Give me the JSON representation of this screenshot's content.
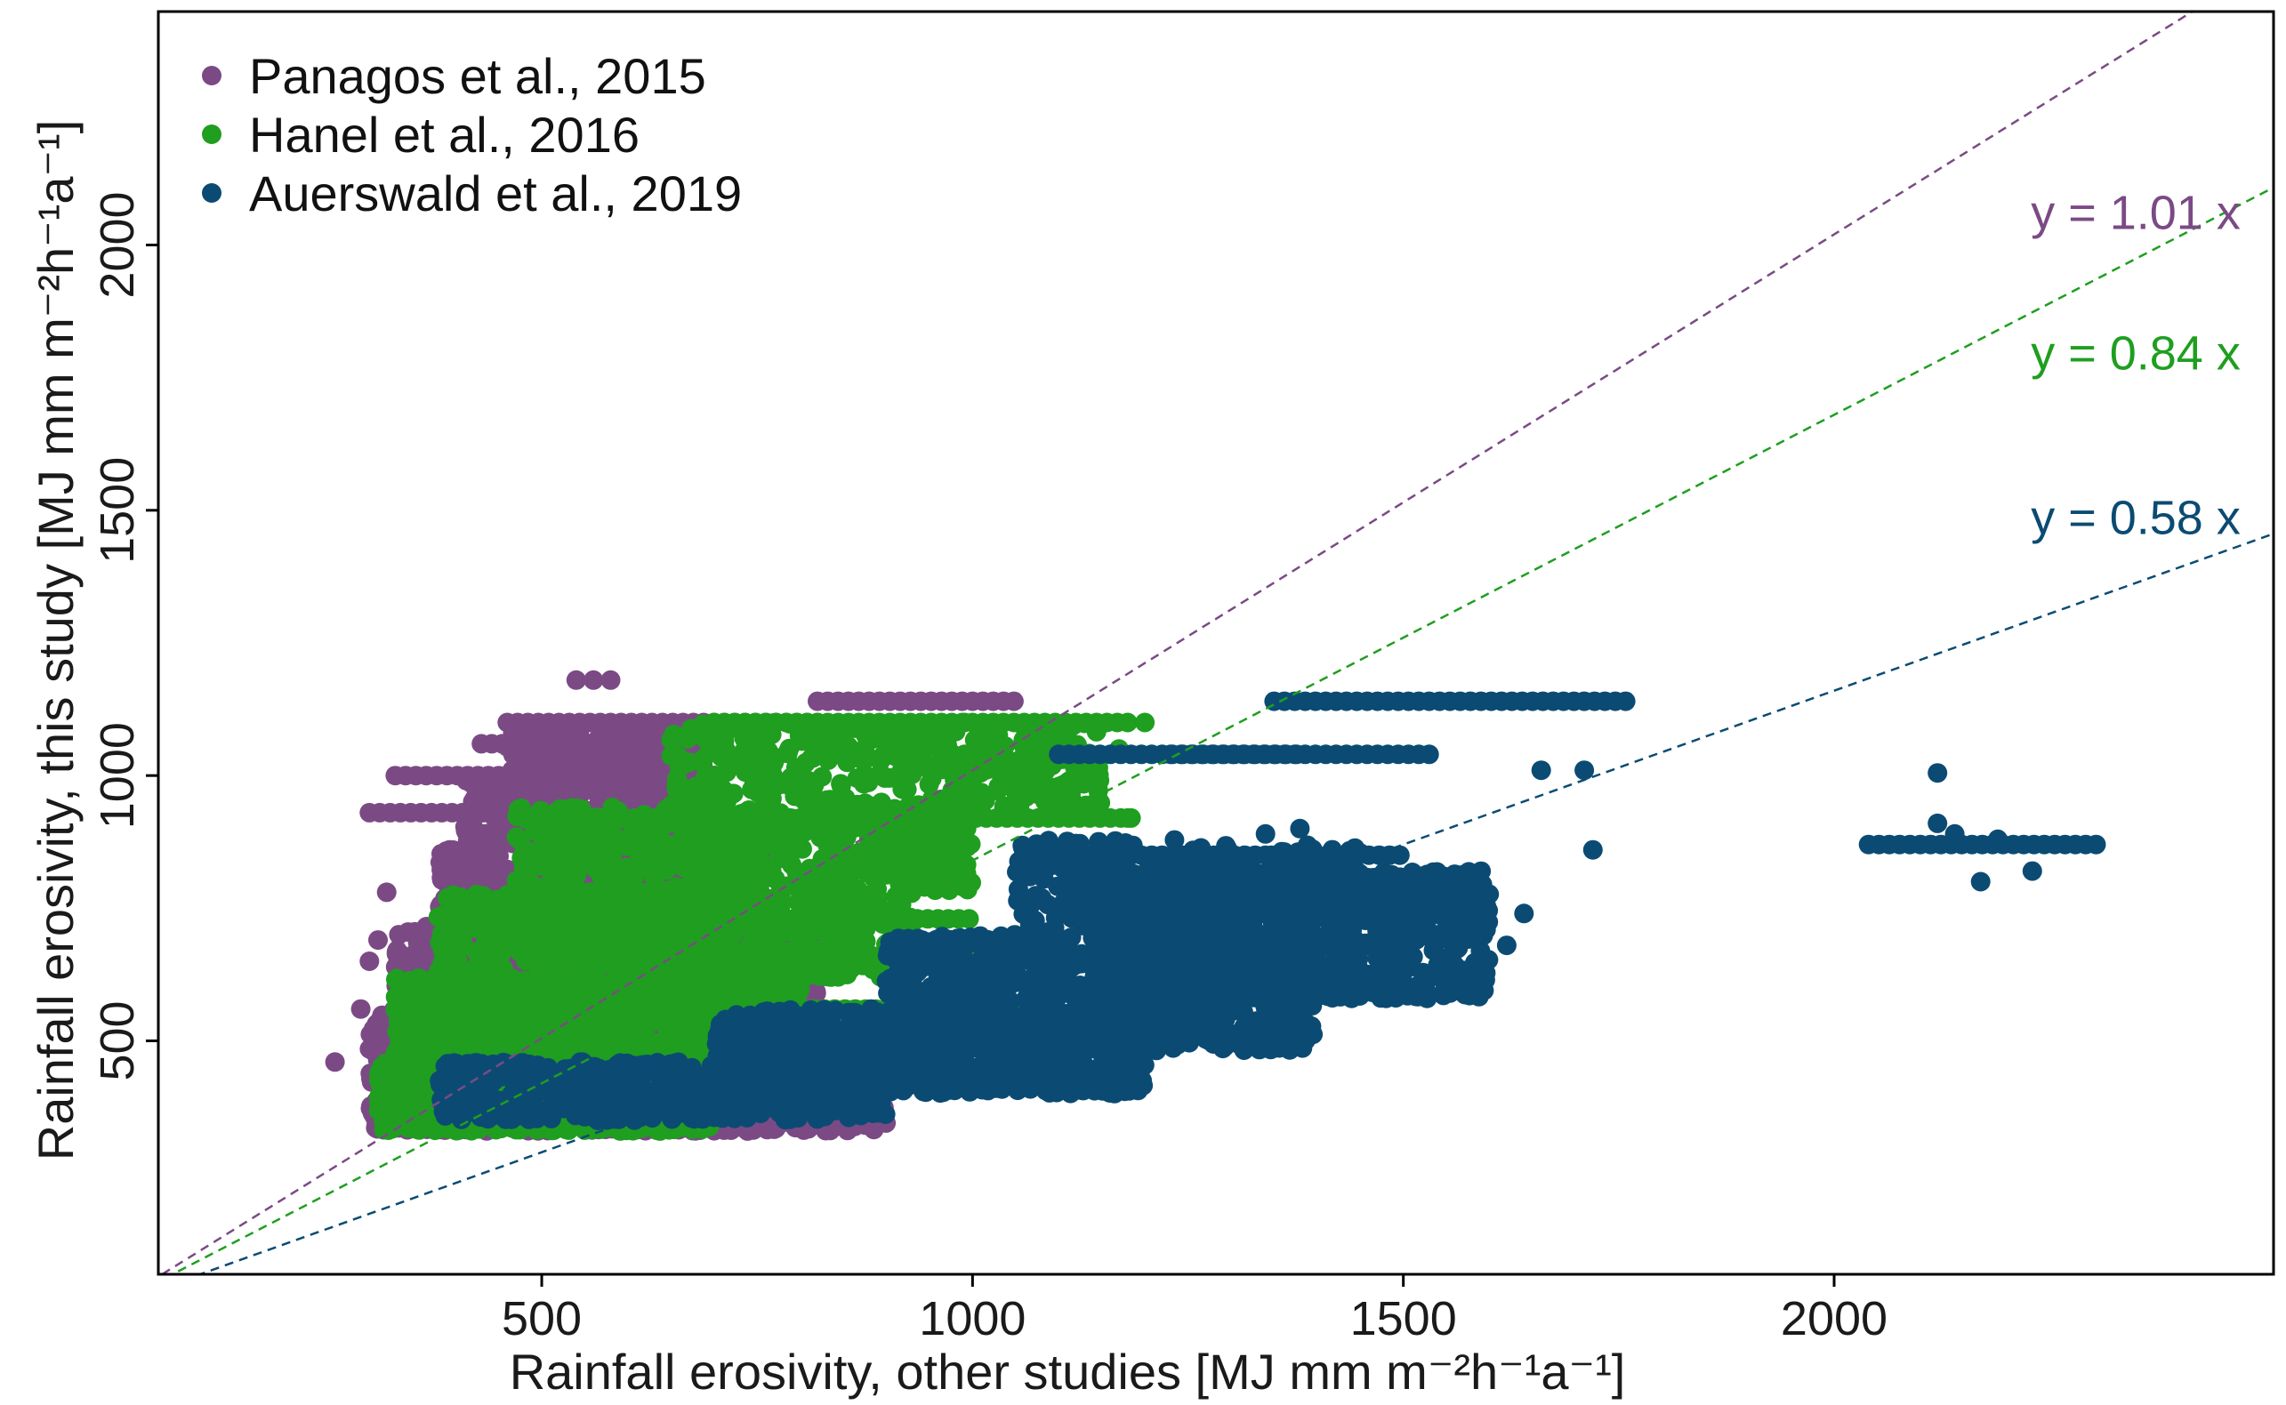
{
  "chart_data": {
    "type": "scatter",
    "xlabel": "Rainfall erosivity, other studies [MJ mm m⁻²h⁻¹a⁻¹]",
    "ylabel": "Rainfall erosivity, this study [MJ mm m⁻²h⁻¹a⁻¹]",
    "xlim": [
      55,
      2510
    ],
    "ylim": [
      60,
      2440
    ],
    "x_ticks": [
      500,
      1000,
      1500,
      2000
    ],
    "y_ticks": [
      500,
      1000,
      1500,
      2000
    ],
    "grid": false,
    "legend_position": "top-left",
    "series": [
      {
        "name": "Panagos et al., 2015",
        "color": "#7b4a85",
        "fit_slope": 1.01,
        "fit_label": "y = 1.01 x",
        "clusters": [
          {
            "x": [
              300,
              900
            ],
            "y": [
              330,
              420
            ],
            "n": 700
          },
          {
            "x": [
              300,
              880
            ],
            "y": [
              420,
              560
            ],
            "n": 900
          },
          {
            "x": [
              330,
              820
            ],
            "y": [
              560,
              720
            ],
            "n": 700
          },
          {
            "x": [
              380,
              760
            ],
            "y": [
              720,
              860
            ],
            "n": 450
          },
          {
            "x": [
              410,
              680
            ],
            "y": [
              860,
              1000
            ],
            "n": 350
          },
          {
            "x": [
              460,
              690
            ],
            "y": [
              1000,
              1090
            ],
            "n": 180
          }
        ],
        "bands": [
          {
            "x": [
              460,
              820
            ],
            "y": 1100
          },
          {
            "x": [
              330,
              560
            ],
            "y": 1000
          },
          {
            "x": [
              300,
              550
            ],
            "y": 930
          },
          {
            "x": [
              820,
              1050
            ],
            "y": 1140
          },
          {
            "x": [
              430,
              700
            ],
            "y": 1060
          }
        ],
        "points": [
          {
            "x": 540,
            "y": 1180
          },
          {
            "x": 560,
            "y": 1180
          },
          {
            "x": 580,
            "y": 1180
          },
          {
            "x": 300,
            "y": 650
          },
          {
            "x": 310,
            "y": 690
          },
          {
            "x": 290,
            "y": 560
          },
          {
            "x": 260,
            "y": 460
          },
          {
            "x": 320,
            "y": 780
          }
        ]
      },
      {
        "name": "Hanel et al., 2016",
        "color": "#1f9e20",
        "fit_slope": 0.84,
        "fit_label": "y = 0.84 x",
        "clusters": [
          {
            "x": [
              310,
              700
            ],
            "y": [
              330,
              460
            ],
            "n": 900
          },
          {
            "x": [
              330,
              800
            ],
            "y": [
              460,
              620
            ],
            "n": 1000
          },
          {
            "x": [
              380,
              930
            ],
            "y": [
              620,
              780
            ],
            "n": 700
          },
          {
            "x": [
              470,
              1000
            ],
            "y": [
              780,
              940
            ],
            "n": 500
          },
          {
            "x": [
              650,
              1150
            ],
            "y": [
              940,
              1100
            ],
            "n": 350
          }
        ],
        "bands": [
          {
            "x": [
              420,
              1000
            ],
            "y": 730
          },
          {
            "x": [
              560,
              1180
            ],
            "y": 660
          },
          {
            "x": [
              500,
              1190
            ],
            "y": 920
          },
          {
            "x": [
              700,
              1180
            ],
            "y": 1100
          },
          {
            "x": [
              600,
              1100
            ],
            "y": 560
          }
        ],
        "points": [
          {
            "x": 1200,
            "y": 1100
          },
          {
            "x": 1170,
            "y": 1050
          },
          {
            "x": 1180,
            "y": 920
          }
        ]
      },
      {
        "name": "Auerswald et al., 2019",
        "color": "#0b4b73",
        "fit_slope": 0.58,
        "fit_label": "y = 0.58 x",
        "clusters": [
          {
            "x": [
              380,
              900
            ],
            "y": [
              350,
              460
            ],
            "n": 600
          },
          {
            "x": [
              700,
              1200
            ],
            "y": [
              400,
              560
            ],
            "n": 800
          },
          {
            "x": [
              900,
              1400
            ],
            "y": [
              480,
              700
            ],
            "n": 900
          },
          {
            "x": [
              1150,
              1600
            ],
            "y": [
              580,
              820
            ],
            "n": 900
          },
          {
            "x": [
              1050,
              1450
            ],
            "y": [
              700,
              880
            ],
            "n": 300
          }
        ],
        "bands": [
          {
            "x": [
              1350,
              1760
            ],
            "y": 1140
          },
          {
            "x": [
              1230,
              1540
            ],
            "y": 1040
          },
          {
            "x": [
              1100,
              1380
            ],
            "y": 1040
          },
          {
            "x": [
              1100,
              1500
            ],
            "y": 850
          },
          {
            "x": [
              2040,
              2310
            ],
            "y": 870
          }
        ],
        "points": [
          {
            "x": 2120,
            "y": 1005
          },
          {
            "x": 2120,
            "y": 910
          },
          {
            "x": 2170,
            "y": 800
          },
          {
            "x": 2230,
            "y": 820
          },
          {
            "x": 2190,
            "y": 880
          },
          {
            "x": 2140,
            "y": 890
          },
          {
            "x": 1710,
            "y": 1010
          },
          {
            "x": 1660,
            "y": 1010
          },
          {
            "x": 1720,
            "y": 860
          },
          {
            "x": 1640,
            "y": 740
          },
          {
            "x": 1620,
            "y": 680
          },
          {
            "x": 1480,
            "y": 580
          },
          {
            "x": 1440,
            "y": 580
          },
          {
            "x": 1380,
            "y": 900
          },
          {
            "x": 1340,
            "y": 890
          }
        ]
      }
    ]
  }
}
